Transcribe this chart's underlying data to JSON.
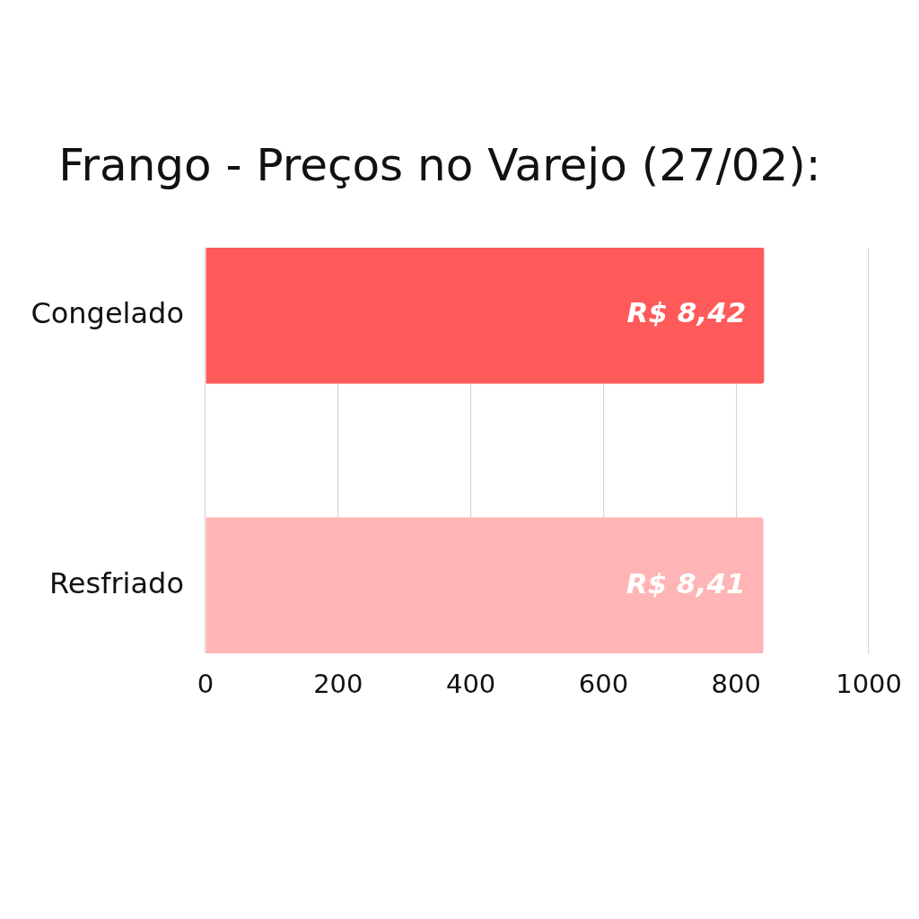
{
  "chart_data": {
    "type": "bar",
    "title": "Frango - Preços no Varejo (27/02):",
    "orientation": "horizontal",
    "categories": [
      "Congelado",
      "Resfriado"
    ],
    "values": [
      842,
      841
    ],
    "colors": [
      "#ff5a5a",
      "#ffb5b5"
    ],
    "value_labels": [
      "R$ 8,42",
      "R$ 8,41"
    ],
    "xlim": [
      0,
      1000
    ],
    "xticks": [
      0,
      200,
      400,
      600,
      800,
      1000
    ],
    "grid": "x"
  }
}
